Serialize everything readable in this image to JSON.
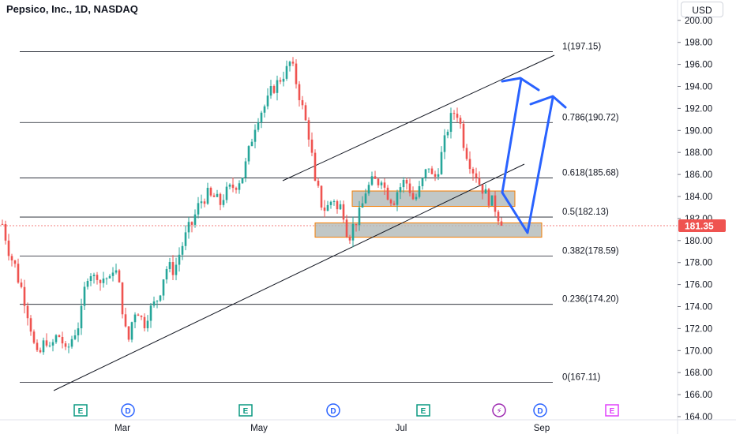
{
  "header": {
    "title": "Pepsico, Inc., 1D, NASDAQ",
    "currency": "USD"
  },
  "colors": {
    "up": "#26a69a",
    "down": "#ef5350",
    "arrow": "#2962ff",
    "zone_fill": "#b2b9b8",
    "zone_border": "#f57c00",
    "last_price_bg": "#ef5350",
    "earnings": "#089981",
    "dividends": "#2962ff",
    "split": "#9c27b0",
    "future_earnings": "#e040fb"
  },
  "chart_data": {
    "type": "candlestick",
    "title": "Pepsico, Inc., 1D, NASDAQ",
    "ylim": [
      164,
      201
    ],
    "y_ticks": [
      "200.00",
      "198.00",
      "196.00",
      "194.00",
      "192.00",
      "190.00",
      "188.00",
      "186.00",
      "184.00",
      "182.00",
      "180.00",
      "178.00",
      "176.00",
      "174.00",
      "172.00",
      "170.00",
      "168.00",
      "166.00",
      "164.00"
    ],
    "x_labels": [
      "Mar",
      "May",
      "Jul",
      "Sep"
    ],
    "last_price": "181.35",
    "last_price_value": 181.35,
    "fib_levels": [
      {
        "label": "1(197.15)",
        "value": 197.15
      },
      {
        "label": "0.786(190.72)",
        "value": 190.72
      },
      {
        "label": "0.618(185.68)",
        "value": 185.68
      },
      {
        "label": "0.5(182.13)",
        "value": 182.13
      },
      {
        "label": "0.382(178.59)",
        "value": 178.59
      },
      {
        "label": "0.236(174.20)",
        "value": 174.2
      },
      {
        "label": "0(167.11)",
        "value": 167.11
      }
    ],
    "zones": [
      {
        "from": 183.1,
        "to": 184.5
      },
      {
        "from": 180.3,
        "to": 181.6
      }
    ],
    "price_path": [
      [
        0,
        181.5
      ],
      [
        5,
        180
      ],
      [
        10,
        178.5
      ],
      [
        15,
        178
      ],
      [
        20,
        176.5
      ],
      [
        25,
        175.5
      ],
      [
        30,
        174
      ],
      [
        35,
        172.5
      ],
      [
        40,
        170.5
      ],
      [
        45,
        169.2
      ],
      [
        50,
        170.2
      ],
      [
        55,
        171.2
      ],
      [
        60,
        170
      ],
      [
        65,
        170.8
      ],
      [
        70,
        171.5
      ],
      [
        75,
        171
      ],
      [
        80,
        169.8
      ],
      [
        85,
        170.5
      ],
      [
        90,
        171.5
      ],
      [
        95,
        172
      ],
      [
        100,
        173.5
      ],
      [
        105,
        176
      ],
      [
        110,
        177.5
      ],
      [
        115,
        176.5
      ],
      [
        120,
        177
      ],
      [
        125,
        176
      ],
      [
        130,
        177
      ],
      [
        135,
        176
      ],
      [
        140,
        177.5
      ],
      [
        145,
        177
      ],
      [
        150,
        175
      ],
      [
        155,
        172
      ],
      [
        160,
        171
      ],
      [
        165,
        173
      ],
      [
        170,
        174
      ],
      [
        175,
        173
      ],
      [
        180,
        172.5
      ],
      [
        185,
        173.5
      ],
      [
        190,
        174
      ],
      [
        195,
        174.5
      ],
      [
        200,
        175.5
      ],
      [
        205,
        177
      ],
      [
        210,
        177.8
      ],
      [
        215,
        177.2
      ],
      [
        220,
        177.8
      ],
      [
        225,
        179
      ],
      [
        230,
        180
      ],
      [
        235,
        181
      ],
      [
        240,
        181.5
      ],
      [
        245,
        182.5
      ],
      [
        250,
        183.5
      ],
      [
        255,
        183.8
      ],
      [
        260,
        184.2
      ],
      [
        265,
        183.8
      ],
      [
        270,
        184
      ],
      [
        275,
        183.2
      ],
      [
        280,
        184
      ],
      [
        285,
        184.5
      ],
      [
        290,
        184.8
      ],
      [
        295,
        185
      ],
      [
        300,
        185.5
      ],
      [
        305,
        186
      ],
      [
        310,
        187.5
      ],
      [
        315,
        189
      ],
      [
        320,
        190.5
      ],
      [
        325,
        191.5
      ],
      [
        330,
        192
      ],
      [
        335,
        192.5
      ],
      [
        340,
        193.5
      ],
      [
        345,
        194
      ],
      [
        350,
        194.5
      ],
      [
        355,
        195
      ],
      [
        360,
        195.5
      ],
      [
        365,
        196.3
      ],
      [
        370,
        195
      ],
      [
        375,
        193.5
      ],
      [
        380,
        192
      ],
      [
        385,
        190.5
      ],
      [
        390,
        189
      ],
      [
        393,
        187
      ],
      [
        396,
        185
      ],
      [
        400,
        184.5
      ],
      [
        405,
        183
      ],
      [
        410,
        182.8
      ],
      [
        415,
        183.5
      ],
      [
        420,
        183.8
      ],
      [
        425,
        182.5
      ],
      [
        430,
        183.5
      ],
      [
        435,
        181
      ],
      [
        440,
        180.5
      ],
      [
        445,
        181.5
      ],
      [
        450,
        182
      ],
      [
        455,
        183
      ],
      [
        460,
        184.5
      ],
      [
        465,
        185
      ],
      [
        470,
        185.5
      ],
      [
        475,
        185.2
      ],
      [
        480,
        185.8
      ],
      [
        485,
        184.5
      ],
      [
        490,
        184
      ],
      [
        495,
        183.5
      ],
      [
        500,
        184.5
      ],
      [
        505,
        185
      ],
      [
        510,
        185.5
      ],
      [
        515,
        184.8
      ],
      [
        520,
        183.8
      ],
      [
        525,
        184
      ],
      [
        530,
        185
      ],
      [
        535,
        186
      ],
      [
        540,
        186.8
      ],
      [
        545,
        185.5
      ],
      [
        550,
        186
      ],
      [
        555,
        187.5
      ],
      [
        560,
        189
      ],
      [
        565,
        190.5
      ],
      [
        570,
        191.5
      ],
      [
        575,
        191.8
      ],
      [
        580,
        190.5
      ],
      [
        585,
        188.5
      ],
      [
        590,
        187.5
      ],
      [
        595,
        186.5
      ],
      [
        600,
        186
      ],
      [
        605,
        185
      ],
      [
        610,
        184.5
      ],
      [
        615,
        183.8
      ],
      [
        620,
        183.5
      ],
      [
        625,
        182.8
      ],
      [
        630,
        181.8
      ],
      [
        633,
        181.35
      ]
    ]
  }
}
